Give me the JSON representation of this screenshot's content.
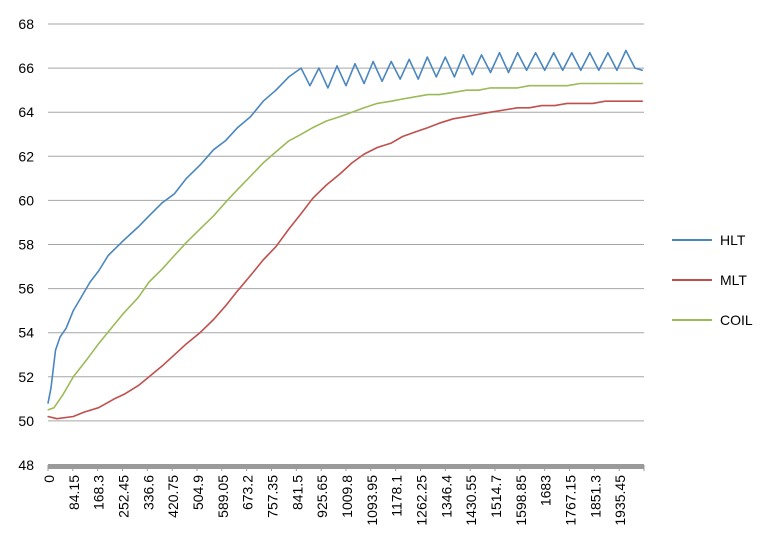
{
  "chart_data": {
    "type": "line",
    "title": "",
    "xlabel": "",
    "ylabel": "",
    "ylim": [
      48,
      68
    ],
    "y_ticks": [
      "48",
      "50",
      "52",
      "54",
      "56",
      "58",
      "60",
      "62",
      "64",
      "66",
      "68"
    ],
    "x_ticks": [
      "0",
      "84.15",
      "168.3",
      "252.45",
      "336.6",
      "420.75",
      "504.9",
      "589.05",
      "673.2",
      "757.35",
      "841.5",
      "925.65",
      "1009.8",
      "1093.95",
      "1178.1",
      "1262.25",
      "1346.4",
      "1430.55",
      "1514.7",
      "1598.85",
      "1683",
      "1767.15",
      "1851.3",
      "1935.45"
    ],
    "xlim": [
      0,
      1980
    ],
    "grid": true,
    "legend_position": "right",
    "series": [
      {
        "name": "HLT",
        "color": "#4a86c0",
        "x": [
          0,
          10,
          25,
          40,
          60,
          84,
          110,
          140,
          168,
          200,
          252,
          300,
          336,
          380,
          420,
          460,
          505,
          550,
          589,
          630,
          673,
          715,
          757,
          800,
          841,
          870,
          900,
          930,
          960,
          990,
          1020,
          1050,
          1080,
          1110,
          1140,
          1170,
          1200,
          1230,
          1260,
          1290,
          1320,
          1350,
          1380,
          1410,
          1440,
          1470,
          1500,
          1530,
          1560,
          1590,
          1620,
          1650,
          1680,
          1710,
          1740,
          1770,
          1800,
          1830,
          1860,
          1890,
          1920,
          1950,
          1975
        ],
        "values": [
          50.8,
          51.5,
          53.2,
          53.8,
          54.2,
          55.0,
          55.6,
          56.3,
          56.8,
          57.5,
          58.2,
          58.8,
          59.3,
          59.9,
          60.3,
          61.0,
          61.6,
          62.3,
          62.7,
          63.3,
          63.8,
          64.5,
          65.0,
          65.6,
          66.0,
          65.2,
          66.0,
          65.1,
          66.1,
          65.2,
          66.2,
          65.3,
          66.3,
          65.4,
          66.3,
          65.5,
          66.4,
          65.5,
          66.5,
          65.6,
          66.5,
          65.6,
          66.6,
          65.7,
          66.6,
          65.8,
          66.7,
          65.8,
          66.7,
          65.9,
          66.7,
          65.9,
          66.7,
          65.9,
          66.7,
          65.9,
          66.7,
          65.9,
          66.7,
          65.9,
          66.8,
          66.0,
          65.9
        ]
      },
      {
        "name": "MLT",
        "color": "#c0504d",
        "x": [
          0,
          30,
          84,
          120,
          168,
          220,
          252,
          300,
          336,
          380,
          420,
          460,
          505,
          550,
          589,
          630,
          673,
          715,
          757,
          800,
          841,
          880,
          925,
          970,
          1010,
          1050,
          1094,
          1140,
          1178,
          1220,
          1262,
          1300,
          1346,
          1390,
          1430,
          1470,
          1515,
          1560,
          1599,
          1640,
          1683,
          1725,
          1767,
          1810,
          1851,
          1895,
          1935,
          1975
        ],
        "values": [
          50.2,
          50.1,
          50.2,
          50.4,
          50.6,
          51.0,
          51.2,
          51.6,
          52.0,
          52.5,
          53.0,
          53.5,
          54.0,
          54.6,
          55.2,
          55.9,
          56.6,
          57.3,
          57.9,
          58.7,
          59.4,
          60.1,
          60.7,
          61.2,
          61.7,
          62.1,
          62.4,
          62.6,
          62.9,
          63.1,
          63.3,
          63.5,
          63.7,
          63.8,
          63.9,
          64.0,
          64.1,
          64.2,
          64.2,
          64.3,
          64.3,
          64.4,
          64.4,
          64.4,
          64.5,
          64.5,
          64.5,
          64.5
        ]
      },
      {
        "name": "COIL",
        "color": "#9bbb59",
        "x": [
          0,
          20,
          50,
          84,
          130,
          168,
          210,
          252,
          300,
          336,
          380,
          420,
          460,
          505,
          550,
          589,
          630,
          673,
          715,
          757,
          800,
          841,
          880,
          925,
          970,
          1010,
          1050,
          1094,
          1140,
          1178,
          1220,
          1262,
          1300,
          1346,
          1390,
          1430,
          1470,
          1515,
          1560,
          1599,
          1640,
          1683,
          1725,
          1767,
          1810,
          1851,
          1895,
          1935,
          1975
        ],
        "values": [
          50.5,
          50.6,
          51.2,
          52.0,
          52.8,
          53.5,
          54.2,
          54.9,
          55.6,
          56.3,
          56.9,
          57.5,
          58.1,
          58.7,
          59.3,
          59.9,
          60.5,
          61.1,
          61.7,
          62.2,
          62.7,
          63.0,
          63.3,
          63.6,
          63.8,
          64.0,
          64.2,
          64.4,
          64.5,
          64.6,
          64.7,
          64.8,
          64.8,
          64.9,
          65.0,
          65.0,
          65.1,
          65.1,
          65.1,
          65.2,
          65.2,
          65.2,
          65.2,
          65.3,
          65.3,
          65.3,
          65.3,
          65.3,
          65.3
        ]
      }
    ]
  }
}
